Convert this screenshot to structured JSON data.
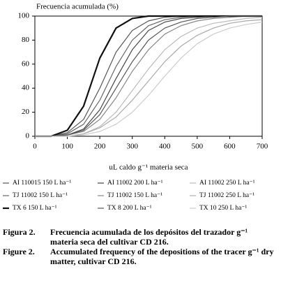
{
  "chart_data": {
    "type": "line",
    "ylabel": "Frecuencia acumulada (%)",
    "xlabel": "uL caldo g⁻¹ materia seca",
    "x": [
      0,
      50,
      100,
      150,
      200,
      250,
      300,
      350,
      400,
      450,
      500,
      550,
      600,
      650,
      700
    ],
    "xlim": [
      0,
      700
    ],
    "ylim": [
      0,
      100
    ],
    "xticks": [
      0,
      100,
      200,
      300,
      400,
      500,
      600,
      700
    ],
    "yticks": [
      0,
      20,
      40,
      60,
      80,
      100
    ],
    "series": [
      {
        "name": "AI 110015 150 L ha⁻¹",
        "color": "#555555",
        "values": [
          0,
          0,
          3,
          14,
          40,
          70,
          88,
          96,
          99,
          100,
          100,
          100,
          100,
          100,
          100
        ]
      },
      {
        "name": "AI 11002 200 L ha⁻¹",
        "color": "#444444",
        "values": [
          0,
          0,
          1,
          6,
          22,
          48,
          72,
          88,
          95,
          98,
          99,
          100,
          100,
          100,
          100
        ]
      },
      {
        "name": "AI 11002 250 L ha⁻¹",
        "color": "#bbbbbb",
        "values": [
          0,
          0,
          0,
          2,
          8,
          20,
          38,
          56,
          72,
          83,
          90,
          94,
          96,
          98,
          99
        ]
      },
      {
        "name": "TJ 11002 150 L ha⁻¹",
        "color": "#666666",
        "values": [
          0,
          0,
          2,
          10,
          30,
          58,
          80,
          92,
          97,
          99,
          100,
          100,
          100,
          100,
          100
        ]
      },
      {
        "name": "TJ 11002 150 L ha⁻¹",
        "color": "#888888",
        "values": [
          0,
          0,
          1,
          4,
          14,
          32,
          54,
          72,
          85,
          92,
          96,
          98,
          99,
          100,
          100
        ]
      },
      {
        "name": "TJ 11002 250 L ha⁻¹",
        "color": "#aaaaaa",
        "values": [
          0,
          0,
          0,
          2,
          7,
          16,
          30,
          46,
          62,
          75,
          84,
          90,
          94,
          96,
          97
        ]
      },
      {
        "name": "TX 6 150 L ha⁻¹",
        "color": "#111111",
        "values": [
          0,
          0,
          5,
          25,
          65,
          90,
          98,
          100,
          100,
          100,
          100,
          100,
          100,
          100,
          100
        ]
      },
      {
        "name": "TX 8 200 L ha⁻¹",
        "color": "#555555",
        "values": [
          0,
          0,
          1,
          5,
          18,
          40,
          62,
          80,
          90,
          95,
          98,
          99,
          100,
          100,
          100
        ]
      },
      {
        "name": "TX 10 250 L ha⁻¹",
        "color": "#cccccc",
        "values": [
          0,
          0,
          0,
          1,
          4,
          10,
          20,
          34,
          50,
          65,
          77,
          85,
          90,
          93,
          95
        ]
      }
    ]
  },
  "caption": [
    {
      "label": "Figura 2.",
      "text": "Frecuencia acumulada de los depósitos del trazador g⁻¹ materia seca del cultivar CD 216."
    },
    {
      "label": "Figure 2.",
      "text": "Accumulated frequency of the depositions of the tracer g⁻¹ dry matter, cultivar CD 216."
    }
  ]
}
